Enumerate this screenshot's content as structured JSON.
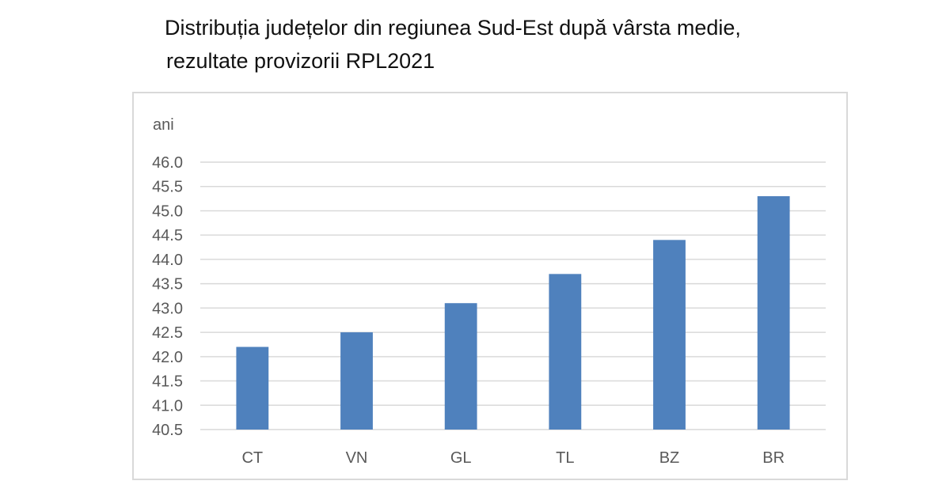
{
  "chart_data": {
    "type": "bar",
    "title_lines": [
      "Distribuția județelor din regiunea Sud-Est după vârsta medie,",
      "rezultate provizorii RPL2021"
    ],
    "unit_label": "ani",
    "categories": [
      "CT",
      "VN",
      "GL",
      "TL",
      "BZ",
      "BR"
    ],
    "values": [
      42.2,
      42.5,
      43.1,
      43.7,
      44.4,
      45.3
    ],
    "y_ticks": [
      "40.5",
      "41.0",
      "41.5",
      "42.0",
      "42.5",
      "43.0",
      "43.5",
      "44.0",
      "44.5",
      "45.0",
      "45.5",
      "46.0"
    ],
    "ylim": [
      40.5,
      46.0
    ],
    "grid": true,
    "legend": "none",
    "bar_color": "#4f81bd",
    "grid_color": "#d9d9d9"
  }
}
